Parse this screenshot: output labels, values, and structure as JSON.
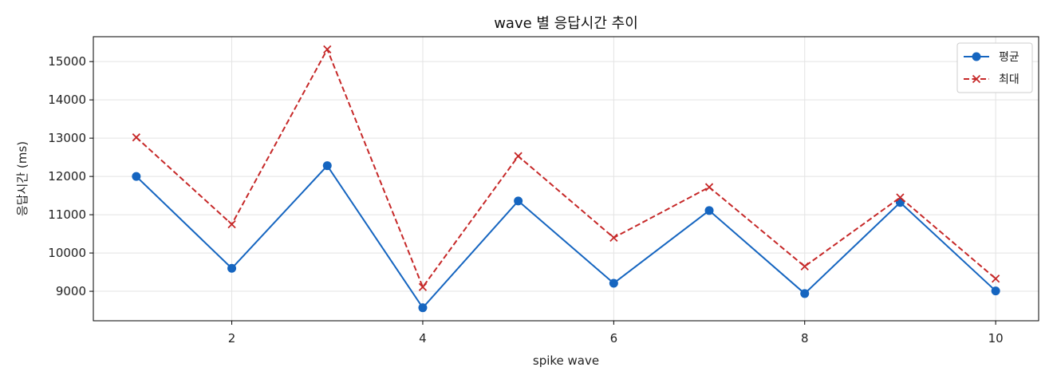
{
  "chart_data": {
    "type": "line",
    "title": "wave 별 응답시간 추이",
    "xlabel": "spike wave",
    "ylabel": "응답시간 (ms)",
    "x": [
      1,
      2,
      3,
      4,
      5,
      6,
      7,
      8,
      9,
      10
    ],
    "xlim": [
      0.55,
      10.45
    ],
    "ylim": [
      8230,
      15650
    ],
    "xticks": [
      2,
      4,
      6,
      8,
      10
    ],
    "yticks": [
      9000,
      10000,
      11000,
      12000,
      13000,
      14000,
      15000
    ],
    "grid": true,
    "legend_position": "top-right",
    "series": [
      {
        "name": "평균",
        "color": "#1565c0",
        "line_style": "solid",
        "marker": "circle",
        "values": [
          12000,
          9600,
          12280,
          8570,
          11360,
          9210,
          11110,
          8940,
          11320,
          9010
        ]
      },
      {
        "name": "최대",
        "color": "#c62828",
        "line_style": "dashed",
        "marker": "x",
        "values": [
          13020,
          10750,
          15320,
          9110,
          12530,
          10400,
          11720,
          9650,
          11450,
          9330
        ]
      }
    ]
  }
}
